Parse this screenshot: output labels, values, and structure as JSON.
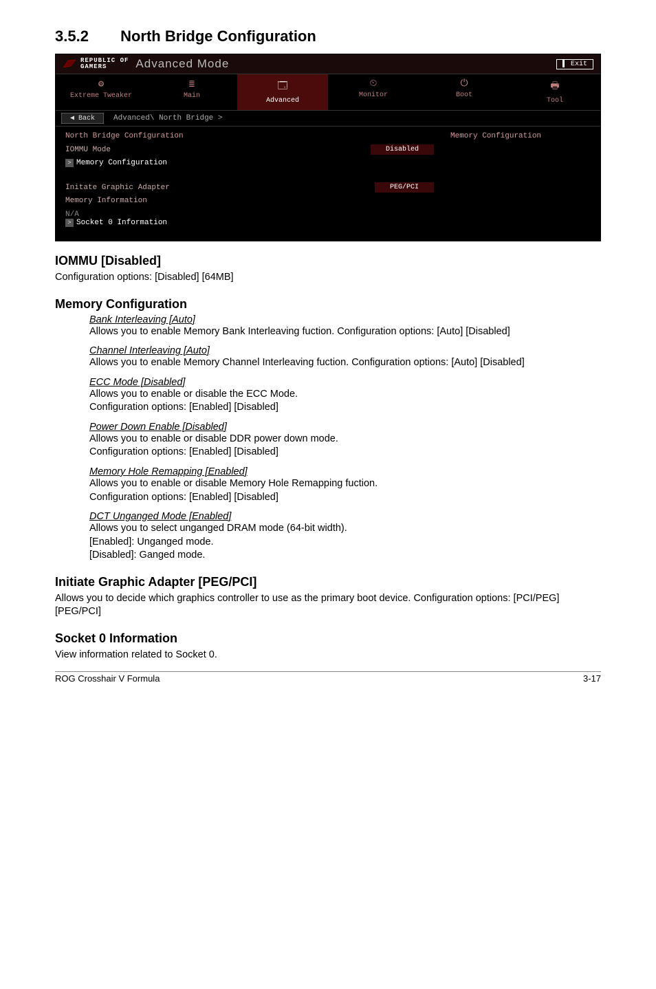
{
  "section": {
    "number": "3.5.2",
    "title": "North Bridge Configuration"
  },
  "bios": {
    "brand_line1": "REPUBLIC OF",
    "brand_line2": "GAMERS",
    "mode": "Advanced Mode",
    "exit": "Exit",
    "tabs": [
      {
        "icon": "⚙",
        "label": "Extreme Tweaker"
      },
      {
        "icon": "≣",
        "label": "Main"
      },
      {
        "icon": "🗔",
        "label": "Advanced"
      },
      {
        "icon": "⏲",
        "label": "Monitor"
      },
      {
        "icon": "⏻",
        "label": "Boot"
      },
      {
        "icon": "🖶",
        "label": "Tool"
      }
    ],
    "back": "Back",
    "breadcrumb": "Advanced\\ North Bridge >",
    "left": {
      "heading": "North Bridge Configuration",
      "iommu_label": "IOMMU Mode",
      "iommu_value": "Disabled",
      "mem_config": "Memory Configuration",
      "init_adapter_label": "Initate Graphic Adapter",
      "init_adapter_value": "PEG/PCI",
      "mem_info": "Memory Information",
      "na": "N/A",
      "socket0": "Socket 0 Information"
    },
    "right_text": "Memory Configuration"
  },
  "doc": {
    "iommu_h": "IOMMU [Disabled]",
    "iommu_p": "Configuration options: [Disabled] [64MB]",
    "memcfg_h": "Memory Configuration",
    "items": [
      {
        "t": "Bank Interleaving [Auto]",
        "b": "Allows you to enable Memory Bank Interleaving fuction. Configuration options: [Auto] [Disabled]"
      },
      {
        "t": "Channel Interleaving [Auto]",
        "b": "Allows you to enable Memory Channel Interleaving fuction. Configuration options: [Auto] [Disabled]"
      },
      {
        "t": "ECC Mode [Disabled]",
        "b": "Allows you to enable or disable the ECC Mode.\nConfiguration options: [Enabled] [Disabled]"
      },
      {
        "t": "Power Down Enable [Disabled]",
        "b": "Allows you to enable or disable DDR power down mode.\nConfiguration options: [Enabled] [Disabled]"
      },
      {
        "t": "Memory Hole Remapping [Enabled]",
        "b": "Allows you to enable or disable Memory Hole Remapping fuction.\nConfiguration options: [Enabled] [Disabled]"
      },
      {
        "t": "DCT Unganged Mode [Enabled]",
        "b": "Allows you to select unganged DRAM mode (64-bit width).\n[Enabled]: Unganged mode.\n[Disabled]: Ganged mode."
      }
    ],
    "init_h": "Initiate Graphic Adapter [PEG/PCI]",
    "init_p": "Allows you to decide which graphics controller to use as the primary boot device. Configuration options: [PCI/PEG] [PEG/PCI]",
    "socket_h": "Socket 0 Information",
    "socket_p": "View information related to Socket 0.",
    "footer_left": "ROG Crosshair V Formula",
    "footer_right": "3-17"
  }
}
